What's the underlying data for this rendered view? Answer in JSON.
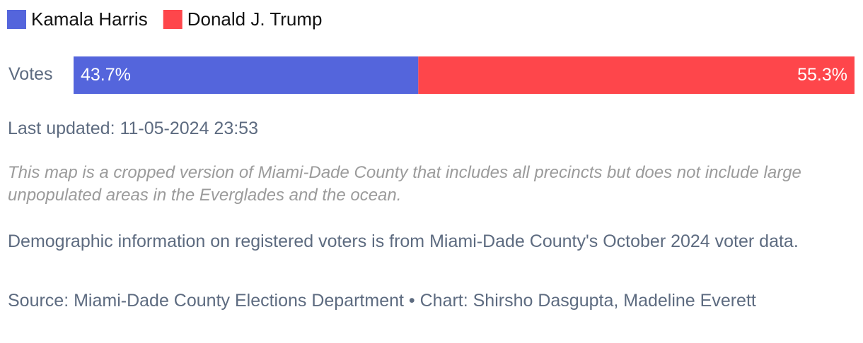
{
  "chart_data": {
    "type": "stacked_bar",
    "categories": [
      "Votes"
    ],
    "series": [
      {
        "name": "Kamala Harris",
        "color": "#5465dc",
        "values": [
          43.7
        ],
        "value_labels": [
          "43.7%"
        ]
      },
      {
        "name": "Donald J. Trump",
        "color": "#fe464b",
        "values": [
          55.3
        ],
        "value_labels": [
          "55.3%"
        ]
      }
    ],
    "xlim": [
      0,
      99
    ],
    "updated": "Last updated: 11-05-2024 23:53",
    "note": "This map is a cropped version of Miami-Dade County that includes all precincts but does not include large unpopulated areas in the Everglades and the ocean.",
    "demographics": "Demographic information on registered voters is from Miami-Dade County's October 2024 voter data.",
    "source": "Source: Miami-Dade County Elections Department • Chart: Shirsho Dasgupta, Madeline Everett"
  }
}
